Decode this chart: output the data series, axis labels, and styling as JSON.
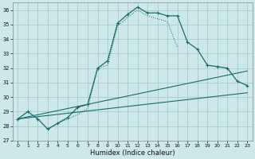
{
  "bg_color": "#cce8e8",
  "grid_color": "#aacccc",
  "line_color": "#1a6b6b",
  "xlabel": "Humidex (Indice chaleur)",
  "ylim": [
    27,
    36.5
  ],
  "xlim": [
    -0.5,
    23.5
  ],
  "yticks": [
    27,
    28,
    29,
    30,
    31,
    32,
    33,
    34,
    35,
    36
  ],
  "xticks": [
    0,
    1,
    2,
    3,
    4,
    5,
    6,
    7,
    8,
    9,
    10,
    11,
    12,
    13,
    14,
    15,
    16,
    17,
    18,
    19,
    20,
    21,
    22,
    23
  ],
  "series1_x": [
    0,
    1,
    2,
    3,
    4,
    5,
    6,
    7,
    8,
    9,
    10,
    11,
    12,
    13,
    14,
    15,
    16,
    17,
    18,
    19,
    20,
    21,
    22,
    23
  ],
  "series1_y": [
    28.5,
    29.0,
    28.5,
    27.8,
    28.2,
    28.6,
    29.3,
    29.5,
    32.0,
    32.5,
    35.1,
    35.7,
    36.2,
    35.8,
    35.8,
    35.6,
    35.6,
    33.8,
    33.3,
    32.2,
    32.1,
    32.0,
    31.1,
    30.8
  ],
  "series2_x": [
    3,
    4,
    5,
    6,
    7,
    8,
    9,
    10,
    11,
    12,
    13,
    14,
    15,
    16
  ],
  "series2_y": [
    27.8,
    28.2,
    28.5,
    28.8,
    29.2,
    32.0,
    32.2,
    34.9,
    35.5,
    36.0,
    35.6,
    35.4,
    35.2,
    33.4
  ],
  "series3_x": [
    0,
    23
  ],
  "series3_y": [
    28.5,
    30.3
  ],
  "series4_x": [
    0,
    23
  ],
  "series4_y": [
    28.5,
    31.8
  ]
}
